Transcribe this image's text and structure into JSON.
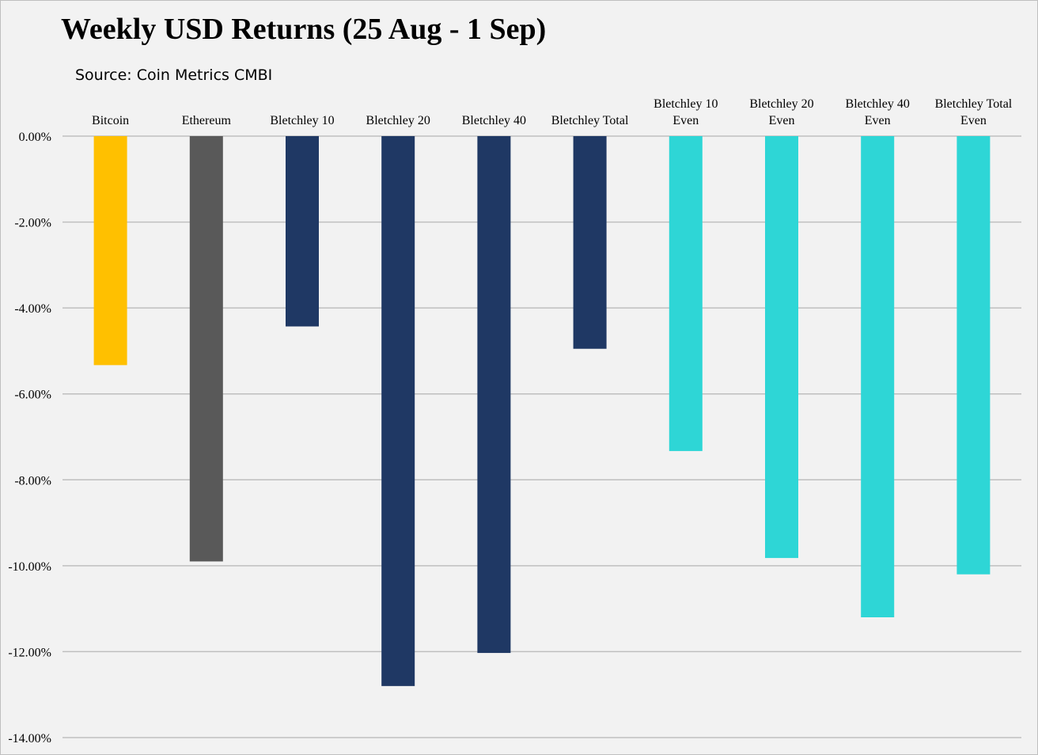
{
  "chart_data": {
    "type": "bar",
    "title": "Weekly USD Returns (25 Aug - 1 Sep)",
    "subtitle": "Source: Coin Metrics CMBI",
    "xlabel": "",
    "ylabel": "",
    "categories": [
      [
        "Bitcoin"
      ],
      [
        "Ethereum"
      ],
      [
        "Bletchley 10"
      ],
      [
        "Bletchley 20"
      ],
      [
        "Bletchley 40"
      ],
      [
        "Bletchley Total"
      ],
      [
        "Bletchley 10",
        "Even"
      ],
      [
        "Bletchley 20",
        "Even"
      ],
      [
        "Bletchley 40",
        "Even"
      ],
      [
        "Bletchley Total",
        "Even"
      ]
    ],
    "values": [
      -5.33,
      -9.9,
      -4.43,
      -12.8,
      -12.03,
      -4.95,
      -7.33,
      -9.82,
      -11.2,
      -10.2
    ],
    "bar_colors": [
      "#ffc000",
      "#595959",
      "#1f3864",
      "#1f3864",
      "#1f3864",
      "#1f3864",
      "#2ed6d6",
      "#2ed6d6",
      "#2ed6d6",
      "#2ed6d6"
    ],
    "ylim": [
      -14,
      0
    ],
    "yticks": [
      0,
      -2,
      -4,
      -6,
      -8,
      -10,
      -12,
      -14
    ],
    "ytick_labels": [
      "0.00%",
      "-2.00%",
      "-4.00%",
      "-6.00%",
      "-8.00%",
      "-10.00%",
      "-12.00%",
      "-14.00%"
    ],
    "grid": true,
    "legend": "none",
    "category_labels_position": "top"
  }
}
